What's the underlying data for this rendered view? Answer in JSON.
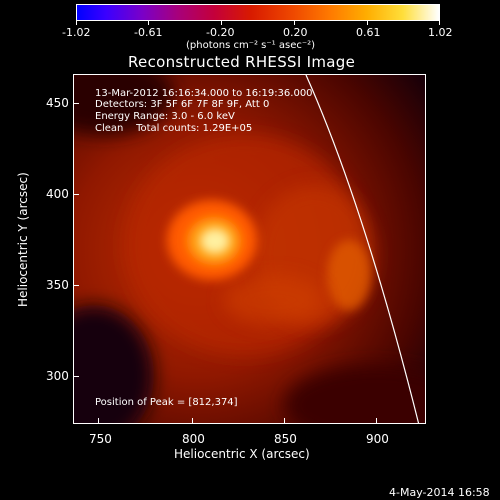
{
  "colorbar": {
    "ticks": [
      "-1.02",
      "-0.61",
      "-0.20",
      "0.20",
      "0.61",
      "1.02"
    ],
    "unit": "(photons cm⁻² s⁻¹ asec⁻²)"
  },
  "title": "Reconstructed RHESSI Image",
  "annotations": {
    "time_range": "13-Mar-2012 16:16:34.000 to 16:19:36.000",
    "detectors": "Detectors: 3F 5F 6F 7F 8F 9F, Att 0",
    "energy_range": "Energy Range: 3.0 - 6.0 keV",
    "clean_label": "Clean    Total counts: 1.29E+05",
    "peak_position": "Position of Peak = [812,374]"
  },
  "axes": {
    "x_ticks": [
      "750",
      "800",
      "850",
      "900"
    ],
    "y_ticks": [
      "450",
      "400",
      "350",
      "300"
    ],
    "xlabel": "Heliocentric X (arcsec)",
    "ylabel": "Heliocentric Y (arcsec)"
  },
  "footer": {
    "date": "4-May-2014 16:58"
  },
  "colors": {
    "background": "#000000",
    "hot_core": "#fff4b0",
    "limb_line": "#ffffff"
  }
}
